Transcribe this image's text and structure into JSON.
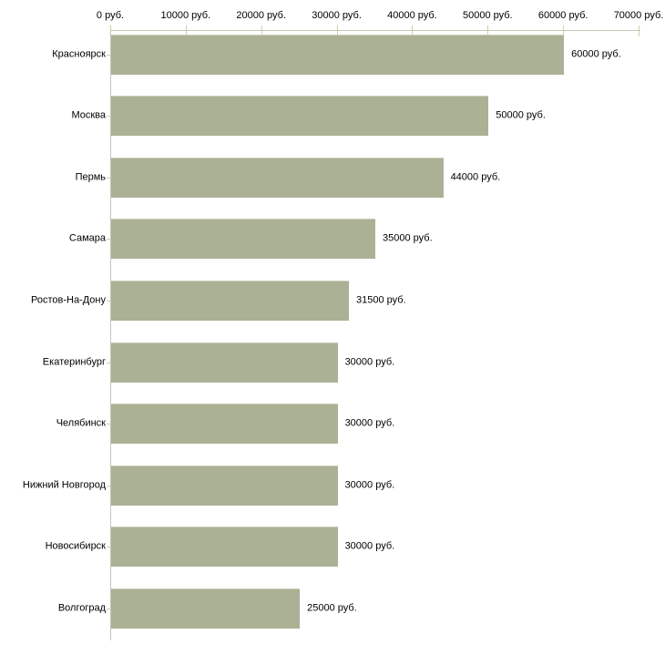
{
  "chart_data": {
    "type": "bar",
    "orientation": "horizontal",
    "title": "",
    "xlabel": "",
    "ylabel": "",
    "unit_suffix": " руб.",
    "categories": [
      "Красноярск",
      "Москва",
      "Пермь",
      "Самара",
      "Ростов-На-Дону",
      "Екатеринбург",
      "Челябинск",
      "Нижний Новгород",
      "Новосибирск",
      "Волгоград"
    ],
    "values": [
      60000,
      50000,
      44000,
      35000,
      31500,
      30000,
      30000,
      30000,
      30000,
      25000
    ],
    "value_labels": [
      "60000 руб.",
      "50000 руб.",
      "44000 руб.",
      "35000 руб.",
      "31500 руб.",
      "30000 руб.",
      "30000 руб.",
      "30000 руб.",
      "30000 руб.",
      "25000 руб."
    ],
    "x_axis": {
      "position": "top",
      "min": 0,
      "max": 70000,
      "tick_interval": 10000,
      "tick_values": [
        0,
        10000,
        20000,
        30000,
        40000,
        50000,
        60000,
        70000
      ],
      "tick_labels": [
        "0 руб.",
        "10000 руб.",
        "20000 руб.",
        "30000 руб.",
        "40000 руб.",
        "50000 руб.",
        "60000 руб.",
        "70000 руб."
      ]
    },
    "grid": false,
    "legend": null,
    "colors": {
      "bar_fill": "#abb194",
      "bar_top_edge": "#c9cdbb",
      "axis_line": "#c6c6bc",
      "tick_mark": "#cdd0a5",
      "text": "#000000",
      "background": "#ffffff"
    }
  }
}
